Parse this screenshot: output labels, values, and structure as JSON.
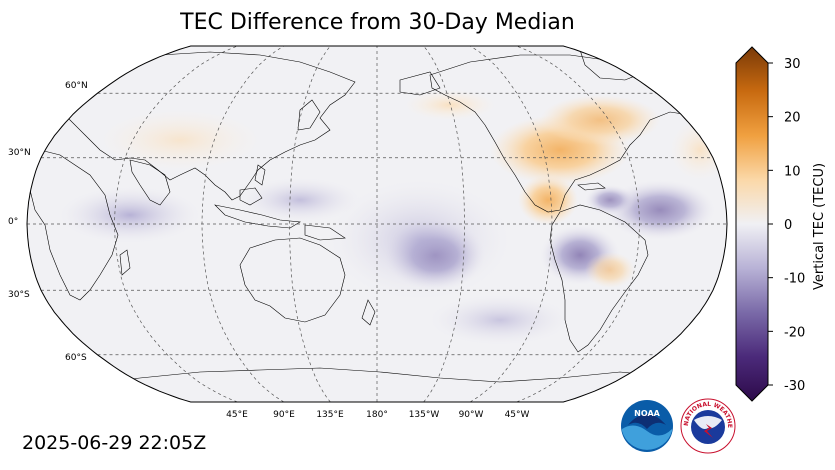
{
  "title": "TEC Difference from 30-Day Median",
  "timestamp": "2025-06-29 22:05Z",
  "colorbar": {
    "label": "Vertical TEC (TECU)",
    "ticks": [
      "30",
      "20",
      "10",
      "0",
      "-10",
      "-20",
      "-30"
    ],
    "range": [
      -30,
      30
    ],
    "colors_low_to_high": [
      "#2d0a4a",
      "#4b2a7a",
      "#7a6aa8",
      "#b8b2d6",
      "#f0f0f4",
      "#fbd8a8",
      "#f0a040",
      "#c86a10",
      "#7a3a08"
    ]
  },
  "map": {
    "projection": "Robinson",
    "central_longitude": 180,
    "lat_labels": [
      "60°N",
      "30°N",
      "0°",
      "30°S",
      "60°S"
    ],
    "lon_labels": [
      "45°E",
      "90°E",
      "135°E",
      "180°",
      "135°W",
      "90°W",
      "45°W"
    ],
    "gridlines": true,
    "anomalies": [
      {
        "region": "central-south-pacific",
        "sign": "negative",
        "value": -18
      },
      {
        "region": "north-america-east",
        "sign": "positive",
        "value": 12
      },
      {
        "region": "central-america-pacific",
        "sign": "positive",
        "value": 10
      },
      {
        "region": "south-america-atlantic",
        "sign": "negative",
        "value": -10
      },
      {
        "region": "indian-ocean-equatorial",
        "sign": "negative",
        "value": -6
      },
      {
        "region": "east-atlantic-equatorial",
        "sign": "negative",
        "value": -8
      }
    ]
  },
  "logos": {
    "noaa": "NOAA",
    "nws": "NATIONAL WEATHER SERVICE"
  }
}
